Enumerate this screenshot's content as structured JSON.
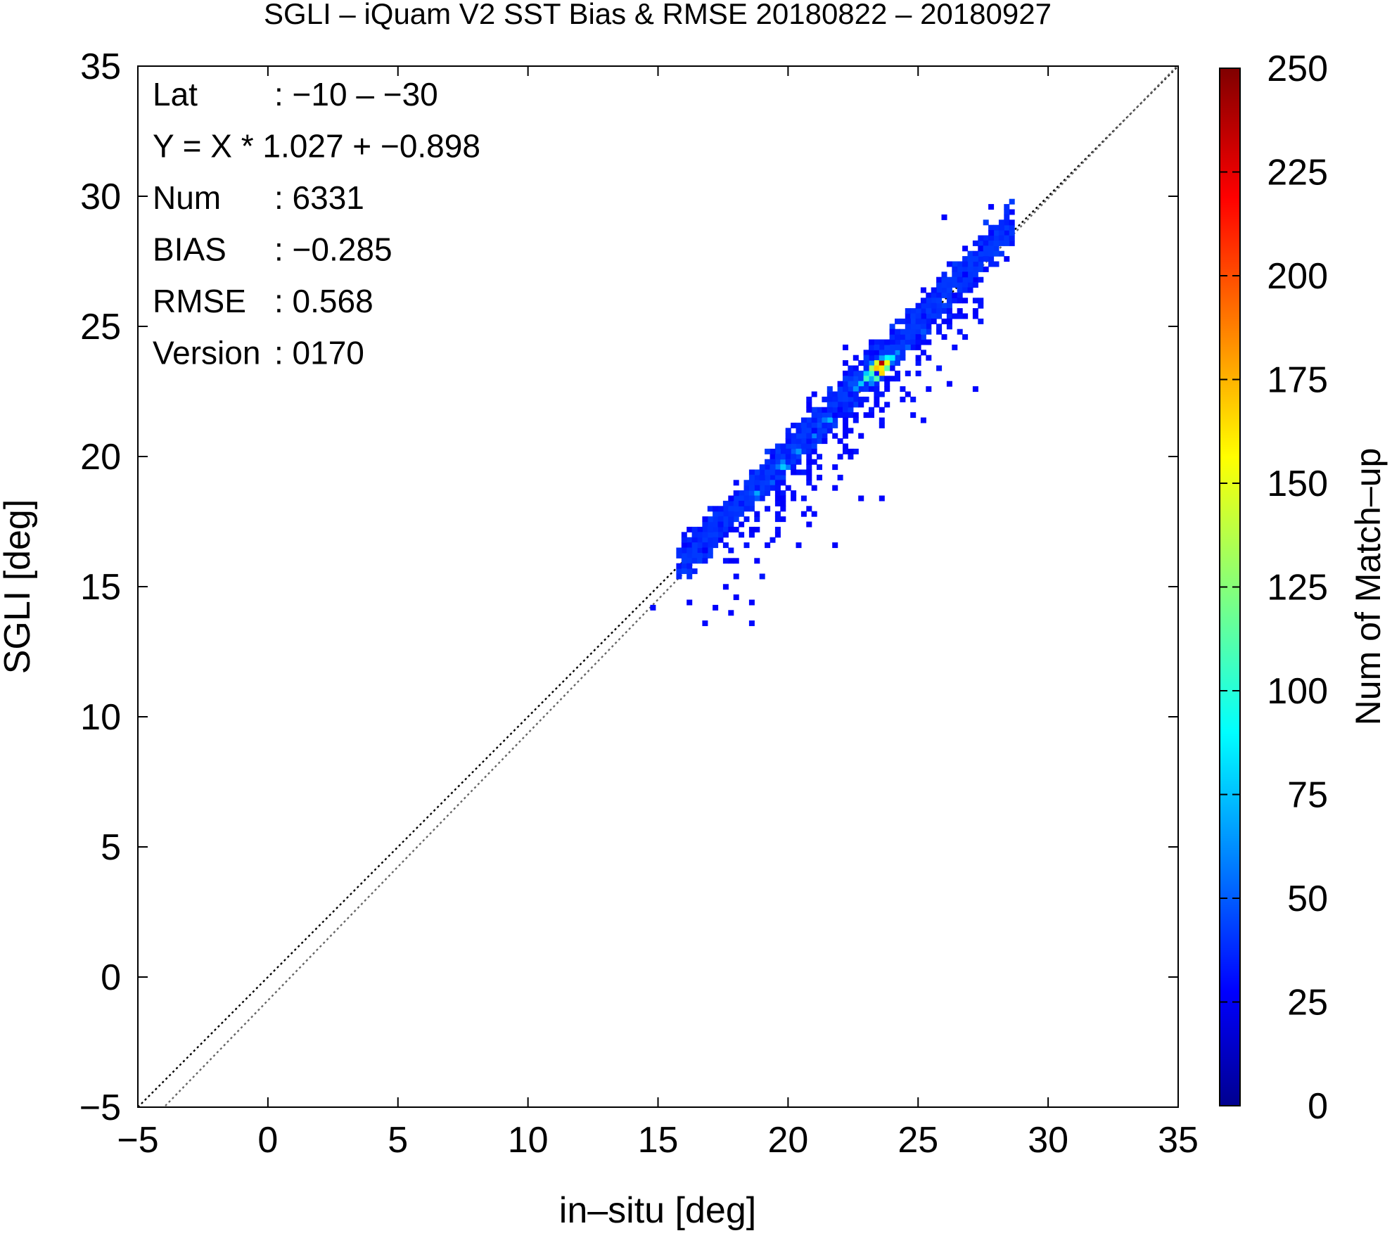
{
  "chart_data": {
    "type": "heatmap",
    "title": "SGLI – iQuam V2 SST Bias & RMSE 20180822 – 20180927",
    "xlabel": "in–situ [deg]",
    "ylabel": "SGLI [deg]",
    "xlim": [
      -5,
      35
    ],
    "ylim": [
      -5,
      35
    ],
    "x_ticks": [
      -5,
      0,
      5,
      10,
      15,
      20,
      25,
      30,
      35
    ],
    "y_ticks": [
      -5,
      0,
      5,
      10,
      15,
      20,
      25,
      30,
      35
    ],
    "x_tick_labels": [
      "−5",
      "0",
      "5",
      "10",
      "15",
      "20",
      "25",
      "30",
      "35"
    ],
    "y_tick_labels": [
      "−5",
      "0",
      "5",
      "10",
      "15",
      "20",
      "25",
      "30",
      "35"
    ],
    "bin_size": 0.2,
    "colorbar": {
      "label": "Num of Match–up",
      "range": [
        0,
        250
      ],
      "ticks": [
        0,
        25,
        50,
        75,
        100,
        125,
        150,
        175,
        200,
        225,
        250
      ],
      "tick_labels": [
        "0",
        "25",
        "50",
        "75",
        "100",
        "125",
        "150",
        "175",
        "200",
        "225",
        "250"
      ],
      "colormap": "jet"
    },
    "reference_lines": [
      {
        "slope": 1.0,
        "intercept": 0.0,
        "color": "#000000",
        "style": "dotted"
      },
      {
        "slope": 1.027,
        "intercept": -0.898,
        "color": "#666666",
        "style": "dotted"
      }
    ],
    "stats": [
      {
        "key": "Lat",
        "sep": ":",
        "value": "−10 – −30"
      },
      {
        "key": "Y = X * 1.027 + −0.898",
        "sep": "",
        "value": ""
      },
      {
        "key": "Num",
        "sep": ":",
        "value": "6331"
      },
      {
        "key": "BIAS",
        "sep": ":",
        "value": "−0.285"
      },
      {
        "key": "RMSE",
        "sep": ":",
        "value": "0.568"
      },
      {
        "key": "Version",
        "sep": ":",
        "value": "0170"
      }
    ],
    "clusters": [
      {
        "x": 23.6,
        "y": 23.5,
        "count": 235
      },
      {
        "x": 23.4,
        "y": 23.3,
        "count": 160
      },
      {
        "x": 23.2,
        "y": 23.4,
        "count": 120
      },
      {
        "x": 23.8,
        "y": 23.7,
        "count": 140
      },
      {
        "x": 23.0,
        "y": 23.0,
        "count": 90
      },
      {
        "x": 24.0,
        "y": 23.8,
        "count": 70
      },
      {
        "x": 22.6,
        "y": 22.7,
        "count": 45
      },
      {
        "x": 21.6,
        "y": 21.3,
        "count": 55
      },
      {
        "x": 21.0,
        "y": 20.9,
        "count": 40
      },
      {
        "x": 20.4,
        "y": 20.2,
        "count": 45
      },
      {
        "x": 19.9,
        "y": 19.6,
        "count": 60
      },
      {
        "x": 19.4,
        "y": 19.0,
        "count": 30
      },
      {
        "x": 18.8,
        "y": 18.6,
        "count": 50
      },
      {
        "x": 18.2,
        "y": 18.0,
        "count": 20
      },
      {
        "x": 24.5,
        "y": 24.2,
        "count": 30
      },
      {
        "x": 25.2,
        "y": 24.8,
        "count": 28
      },
      {
        "x": 26.0,
        "y": 25.7,
        "count": 22
      },
      {
        "x": 26.8,
        "y": 26.6,
        "count": 18
      },
      {
        "x": 28.0,
        "y": 27.9,
        "count": 22
      }
    ]
  }
}
